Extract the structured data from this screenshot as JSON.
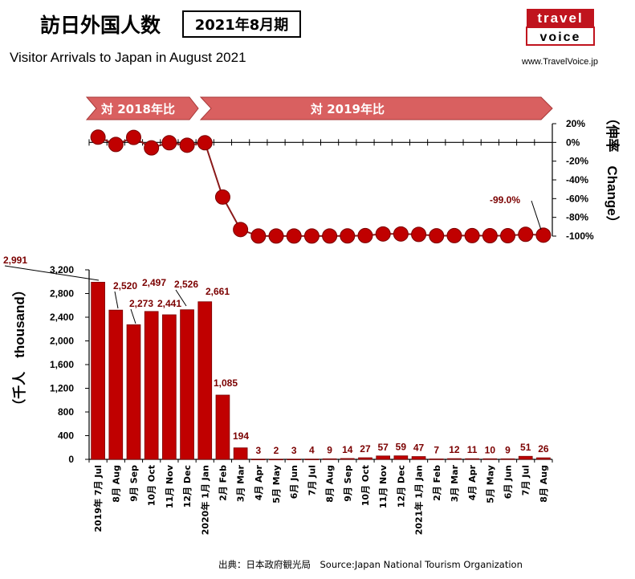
{
  "header": {
    "title": "訪日外国人数",
    "period": "2021年8月期",
    "subtitle": "Visitor Arrivals to Japan in August 2021",
    "logo_top": "travel",
    "logo_bottom": "voice",
    "site": "www.TravelVoice.jp"
  },
  "banners": {
    "left": "対 2018年比",
    "right": "対 2019年比"
  },
  "footer": {
    "source": "出典：日本政府観光局　Source:Japan  National Tourism  Organization"
  },
  "colors": {
    "bar": "#c00000",
    "bar_edge": "#7a0000",
    "label": "#7b0000",
    "banner": "#d96060",
    "logo": "#c0141e"
  },
  "chart_data": [
    {
      "type": "line",
      "ylabel": "（伸率　Change）",
      "ylim": [
        -100,
        20
      ],
      "yticks": [
        20,
        0,
        -20,
        -40,
        -60,
        -80,
        -100
      ],
      "ytick_labels": [
        "20%",
        "0%",
        "-20%",
        "-40%",
        "-60%",
        "-80%",
        "-100%"
      ],
      "annotation": "-99.0%",
      "values": [
        5.6,
        -2.2,
        5.3,
        -5.8,
        -0.4,
        -3.0,
        -0.4,
        -58.3,
        -93.0,
        -99.9,
        -99.9,
        -99.9,
        -99.9,
        -99.9,
        -99.8,
        -99.5,
        -97.7,
        -97.7,
        -98.2,
        -99.7,
        -99.5,
        -99.5,
        -99.6,
        -99.6,
        -98.1,
        -99.0
      ]
    },
    {
      "type": "bar",
      "ylabel": "（千人　thousand）",
      "ylim": [
        0,
        3200
      ],
      "yticks": [
        0,
        400,
        800,
        1200,
        1600,
        2000,
        2400,
        2800,
        3200
      ],
      "ytick_labels": [
        "0",
        "400",
        "800",
        "1,200",
        "1,600",
        "2,000",
        "2,400",
        "2,800",
        "3,200"
      ],
      "categories": [
        "2019年 7月 Jul",
        "8月 Aug",
        "9月 Sep",
        "10月 Oct",
        "11月 Nov",
        "12月 Dec",
        "2020年 1月 Jan",
        "2月 Feb",
        "3月 Mar",
        "4月 Apr",
        "5月 May",
        "6月 Jun",
        "7月 Jul",
        "8月 Aug",
        "9月 Sep",
        "10月 Oct",
        "11月 Nov",
        "12月 Dec",
        "2021年 1月 Jan",
        "2月 Feb",
        "3月 Mar",
        "4月 Apr",
        "5月 May",
        "6月 Jun",
        "7月 Jul",
        "8月 Aug"
      ],
      "values": [
        2991,
        2520,
        2273,
        2497,
        2441,
        2526,
        2661,
        1085,
        194,
        3,
        2,
        3,
        4,
        9,
        14,
        27,
        57,
        59,
        47,
        7,
        12,
        11,
        10,
        9,
        51,
        26
      ],
      "value_labels": [
        "2,991",
        "2,520",
        "2,273",
        "2,497",
        "2,441",
        "2,526",
        "2,661",
        "1,085",
        "194",
        "3",
        "2",
        "3",
        "4",
        "9",
        "14",
        "27",
        "57",
        "59",
        "47",
        "7",
        "12",
        "11",
        "10",
        "9",
        "51",
        "26"
      ]
    }
  ]
}
